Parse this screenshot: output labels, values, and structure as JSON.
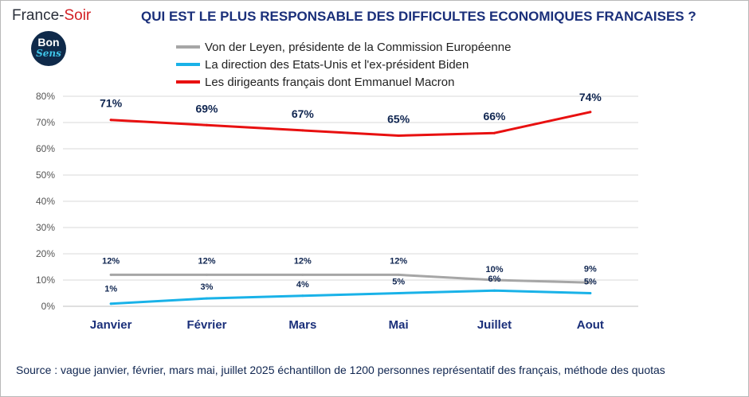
{
  "brand": {
    "prefix": "France-",
    "suffix": "Soir"
  },
  "logo": {
    "line1": "Bon",
    "line2": "Sens"
  },
  "chart_data": {
    "type": "line",
    "title": "QUI EST LE PLUS RESPONSABLE DES DIFFICULTES ECONOMIQUES FRANCAISES ?",
    "categories": [
      "Janvier",
      "Février",
      "Mars",
      "Mai",
      "Juillet",
      "Aout"
    ],
    "ylim": [
      0,
      80
    ],
    "yticks": [
      "0%",
      "10%",
      "20%",
      "30%",
      "40%",
      "50%",
      "60%",
      "70%",
      "80%"
    ],
    "grid": true,
    "legend_position": "top",
    "series": [
      {
        "name": "Von der Leyen, présidente de la Commission Européenne",
        "color": "#a6a6a6",
        "values": [
          12,
          12,
          12,
          12,
          10,
          9
        ],
        "labels": [
          "12%",
          "12%",
          "12%",
          "12%",
          "10%",
          "9%"
        ]
      },
      {
        "name": "La direction des Etats-Unis et l'ex-président Biden",
        "color": "#19b2e8",
        "values": [
          1,
          3,
          4,
          5,
          6,
          5
        ],
        "labels": [
          "1%",
          "3%",
          "4%",
          "5%",
          "6%",
          "5%"
        ]
      },
      {
        "name": "Les dirigeants français dont Emmanuel Macron",
        "color": "#e81010",
        "values": [
          71,
          69,
          67,
          65,
          66,
          74
        ],
        "labels": [
          "71%",
          "69%",
          "67%",
          "65%",
          "66%",
          "74%"
        ]
      }
    ]
  },
  "source": "Source : vague janvier, février, mars  mai, juillet 2025 échantillon de 1200 personnes représentatif des français, méthode des quotas"
}
